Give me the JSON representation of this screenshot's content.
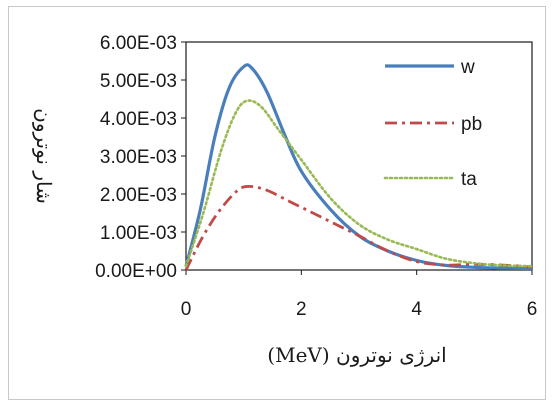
{
  "chart_data": {
    "type": "line",
    "title": "",
    "xlabel": "انرژی نوترون (MeV)",
    "ylabel": "شار نوترون",
    "xlim": [
      0,
      6
    ],
    "ylim": [
      0,
      0.006
    ],
    "x_ticks": [
      "0",
      "2",
      "4",
      "6"
    ],
    "y_ticks": [
      "0.00E+00",
      "1.00E-03",
      "2.00E-03",
      "3.00E-03",
      "4.00E-03",
      "5.00E-03",
      "6.00E-03"
    ],
    "grid": false,
    "legend_position": "top-right",
    "series": [
      {
        "name": "w",
        "color": "#4a7ebb",
        "style": "solid",
        "points": [
          [
            0,
            0.0001
          ],
          [
            0.25,
            0.0016
          ],
          [
            0.5,
            0.0035
          ],
          [
            0.75,
            0.0048
          ],
          [
            1.0,
            0.00535
          ],
          [
            1.15,
            0.0053
          ],
          [
            1.4,
            0.0047
          ],
          [
            1.7,
            0.0036
          ],
          [
            2.0,
            0.0026
          ],
          [
            2.5,
            0.0016
          ],
          [
            3.0,
            0.0009
          ],
          [
            3.5,
            0.0005
          ],
          [
            4.0,
            0.00025
          ],
          [
            4.5,
            0.00012
          ],
          [
            5.0,
            7e-05
          ],
          [
            5.5,
            5e-05
          ],
          [
            6.0,
            4e-05
          ]
        ]
      },
      {
        "name": "pb",
        "color": "#be4b48",
        "style": "dashdot",
        "points": [
          [
            0,
            0.0
          ],
          [
            0.3,
            0.0009
          ],
          [
            0.6,
            0.0016
          ],
          [
            0.9,
            0.0021
          ],
          [
            1.1,
            0.0022
          ],
          [
            1.4,
            0.0021
          ],
          [
            1.8,
            0.0018
          ],
          [
            2.2,
            0.0015
          ],
          [
            2.6,
            0.0012
          ],
          [
            3.0,
            0.0009
          ],
          [
            3.5,
            0.0005
          ],
          [
            4.0,
            0.00022
          ],
          [
            4.5,
            0.00013
          ],
          [
            5.0,
            0.00015
          ],
          [
            5.5,
            0.00013
          ],
          [
            6.0,
            8e-05
          ]
        ]
      },
      {
        "name": "ta",
        "color": "#98b954",
        "style": "dotted",
        "points": [
          [
            0,
            0.0001
          ],
          [
            0.3,
            0.0015
          ],
          [
            0.6,
            0.0031
          ],
          [
            0.85,
            0.0041
          ],
          [
            1.05,
            0.00445
          ],
          [
            1.3,
            0.0043
          ],
          [
            1.6,
            0.0037
          ],
          [
            2.0,
            0.0029
          ],
          [
            2.5,
            0.0019
          ],
          [
            3.0,
            0.0012
          ],
          [
            3.5,
            0.0008
          ],
          [
            4.0,
            0.00055
          ],
          [
            4.5,
            0.0003
          ],
          [
            5.0,
            0.00018
          ],
          [
            5.5,
            0.00012
          ],
          [
            6.0,
            0.0001
          ]
        ]
      }
    ]
  }
}
